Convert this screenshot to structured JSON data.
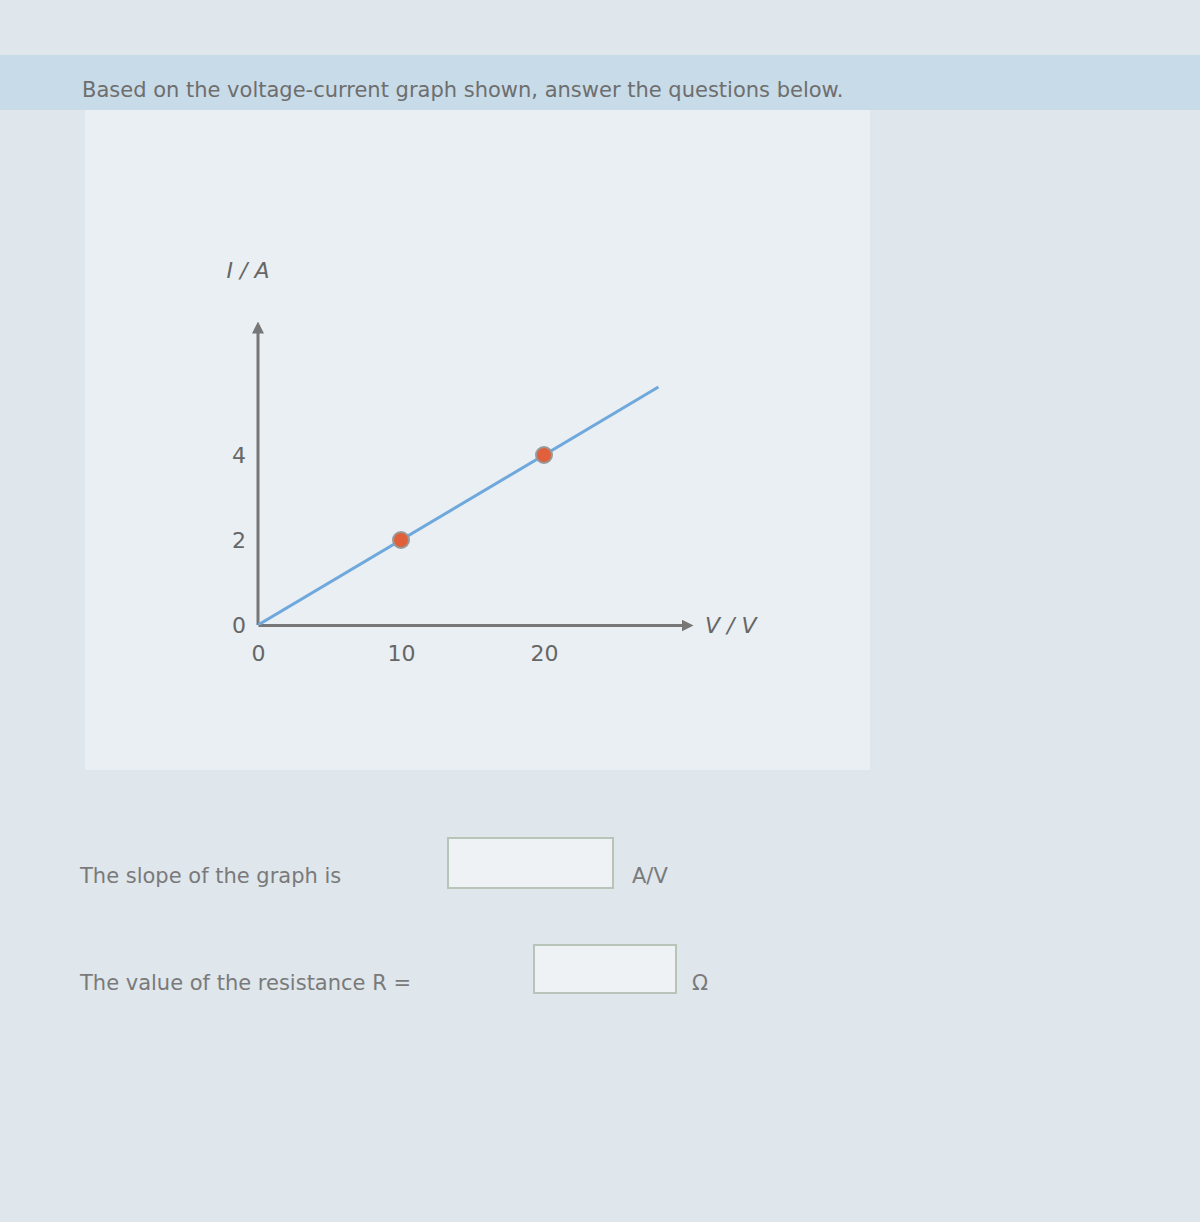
{
  "prompt": "Based on the voltage-current graph shown, answer the questions below.",
  "chart_data": {
    "type": "line",
    "x_label": "V / V",
    "y_label": "I / A",
    "series": [
      {
        "type": "line",
        "color": "#6fa8dc",
        "line_style": "solid",
        "x": [
          0,
          28
        ],
        "values": [
          0,
          5.6
        ]
      },
      {
        "type": "scatter",
        "color": "#e0603c",
        "marker": "circle",
        "x": [
          10,
          20
        ],
        "values": [
          2,
          4
        ]
      }
    ],
    "xlim": [
      0,
      30
    ],
    "ylim": [
      0,
      7
    ],
    "xticks": [
      0,
      10,
      20
    ],
    "yticks": [
      0,
      2,
      4
    ]
  },
  "questions": [
    {
      "text": "The slope of the graph is",
      "unit": "A/V"
    },
    {
      "text": "The value of the resistance R =",
      "unit": "Ω"
    }
  ]
}
